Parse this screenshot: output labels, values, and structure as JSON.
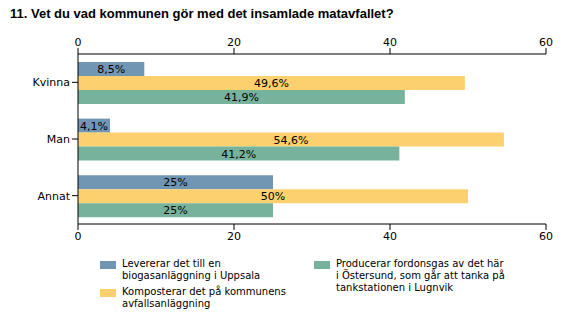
{
  "chart_data": {
    "type": "bar",
    "title": "11. Vet du vad kommunen gör med det insamlade matavfallet?",
    "orientation": "horizontal",
    "categories": [
      "Kvinna",
      "Man",
      "Annat"
    ],
    "series": [
      {
        "name": "Levererar det till en biogasanläggning i Uppsala",
        "color": "#7096b4",
        "values": [
          8.5,
          4.1,
          25
        ],
        "value_labels": [
          "8,5%",
          "4,1%",
          "25%"
        ]
      },
      {
        "name": "Komposterar det på kommunens avfallsanläggning",
        "color": "#fcd06e",
        "values": [
          49.6,
          54.6,
          50
        ],
        "value_labels": [
          "49,6%",
          "54,6%",
          "50%"
        ]
      },
      {
        "name": "Producerar fordonsgas av det här i Östersund, som går att tanka på tankstationen i Lugnvik",
        "color": "#77b39c",
        "values": [
          41.9,
          41.2,
          25
        ],
        "value_labels": [
          "41,9%",
          "41,2%",
          "25%"
        ]
      }
    ],
    "xlim": [
      0,
      60
    ],
    "xticks": [
      0,
      20,
      40,
      60
    ],
    "grid": false,
    "data_labels": true
  }
}
